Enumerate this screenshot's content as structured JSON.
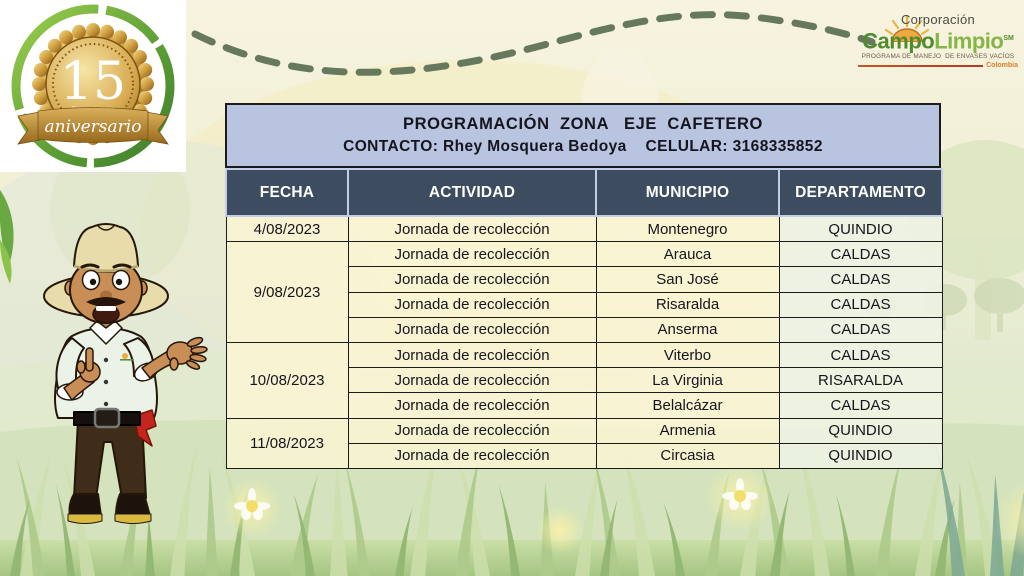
{
  "anniversary": {
    "number": "15",
    "word": "aniversario",
    "brand_small": "CampoLimpio"
  },
  "logo": {
    "corporation": "Corporación",
    "brand_first": "Campo",
    "brand_second": "Limpio",
    "trademark": "SM",
    "program": "PROGRAMA DE MANEJO  DE ENVASES VACÍOS",
    "country": "Colombia"
  },
  "table": {
    "title": "PROGRAMACIÓN  ZONA   EJE  CAFETERO",
    "contact": "CONTACTO: Rhey Mosquera Bedoya    CELULAR: 3168335852",
    "columns": [
      "FECHA",
      "ACTIVIDAD",
      "MUNICIPIO",
      "DEPARTAMENTO"
    ],
    "groups": [
      {
        "date": "4/08/2023",
        "rows": [
          {
            "activity": "Jornada de recolección",
            "municipio": "Montenegro",
            "departamento": "QUINDIO"
          }
        ]
      },
      {
        "date": "9/08/2023",
        "rows": [
          {
            "activity": "Jornada de recolección",
            "municipio": "Arauca",
            "departamento": "CALDAS"
          },
          {
            "activity": "Jornada de recolección",
            "municipio": "San José",
            "departamento": "CALDAS"
          },
          {
            "activity": "Jornada de recolección",
            "municipio": "Risaralda",
            "departamento": "CALDAS"
          },
          {
            "activity": "Jornada de recolección",
            "municipio": "Anserma",
            "departamento": "CALDAS"
          }
        ]
      },
      {
        "date": "10/08/2023",
        "rows": [
          {
            "activity": "Jornada de recolección",
            "municipio": "Viterbo",
            "departamento": "CALDAS"
          },
          {
            "activity": "Jornada de recolección",
            "municipio": "La Virginia",
            "departamento": "RISARALDA"
          },
          {
            "activity": "Jornada de recolección",
            "municipio": "Belalcázar",
            "departamento": "CALDAS"
          }
        ]
      },
      {
        "date": "11/08/2023",
        "rows": [
          {
            "activity": "Jornada de recolección",
            "municipio": "Armenia",
            "departamento": "QUINDIO"
          },
          {
            "activity": "Jornada de recolección",
            "municipio": "Circasia",
            "departamento": "QUINDIO"
          }
        ]
      }
    ]
  },
  "colors": {
    "banner_bg": "#b8c4e0",
    "header_bg": "#3d4c5f",
    "header_text": "#ffffff",
    "cell_cream": "rgba(250,245,212,0.85)",
    "cell_dept": "rgba(238,243,228,0.88)",
    "logo_green_dark": "#4f8b2f",
    "logo_green_light": "#85b447",
    "logo_orange": "#e07b2a",
    "dashed_line": "#66795c",
    "gold": "#c9992f"
  }
}
